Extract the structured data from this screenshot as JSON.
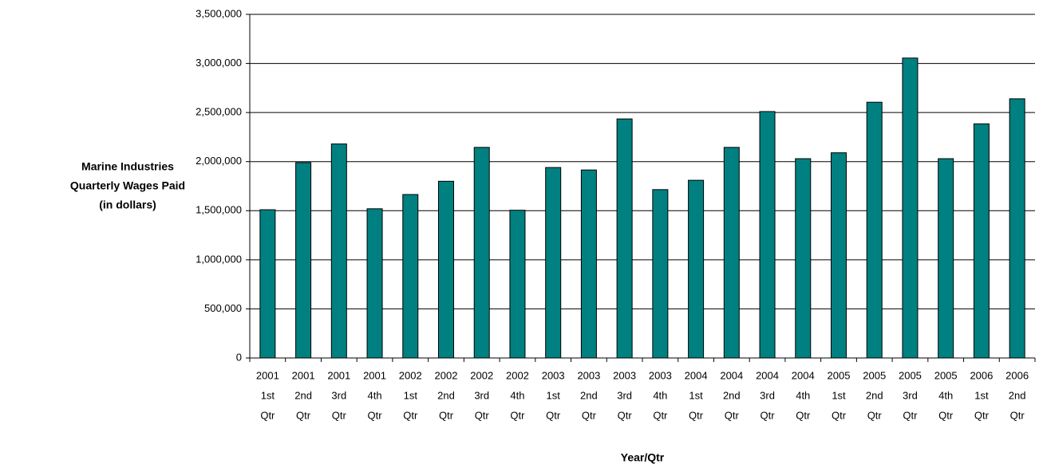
{
  "chart_data": {
    "type": "bar",
    "y_label": [
      "Marine Industries",
      "Quarterly Wages Paid",
      "(in dollars)"
    ],
    "x_label": "Year/Qtr",
    "categories": [
      [
        "2001",
        "1st",
        "Qtr"
      ],
      [
        "2001",
        "2nd",
        "Qtr"
      ],
      [
        "2001",
        "3rd",
        "Qtr"
      ],
      [
        "2001",
        "4th",
        "Qtr"
      ],
      [
        "2002",
        "1st",
        "Qtr"
      ],
      [
        "2002",
        "2nd",
        "Qtr"
      ],
      [
        "2002",
        "3rd",
        "Qtr"
      ],
      [
        "2002",
        "4th",
        "Qtr"
      ],
      [
        "2003",
        "1st",
        "Qtr"
      ],
      [
        "2003",
        "2nd",
        "Qtr"
      ],
      [
        "2003",
        "3rd",
        "Qtr"
      ],
      [
        "2003",
        "4th",
        "Qtr"
      ],
      [
        "2004",
        "1st",
        "Qtr"
      ],
      [
        "2004",
        "2nd",
        "Qtr"
      ],
      [
        "2004",
        "3rd",
        "Qtr"
      ],
      [
        "2004",
        "4th",
        "Qtr"
      ],
      [
        "2005",
        "1st",
        "Qtr"
      ],
      [
        "2005",
        "2nd",
        "Qtr"
      ],
      [
        "2005",
        "3rd",
        "Qtr"
      ],
      [
        "2005",
        "4th",
        "Qtr"
      ],
      [
        "2006",
        "1st",
        "Qtr"
      ],
      [
        "2006",
        "2nd",
        "Qtr"
      ]
    ],
    "values": [
      1510000,
      1990000,
      2180000,
      1520000,
      1665000,
      1800000,
      2145000,
      1505000,
      1940000,
      1915000,
      2435000,
      1715000,
      1810000,
      2145000,
      2510000,
      2030000,
      2090000,
      2605000,
      3055000,
      2030000,
      2385000,
      2640000
    ],
    "color": "#008080",
    "ylim": [
      0,
      3500000
    ],
    "yticks": [
      0,
      {
        "value": 500000,
        "label": "500,000"
      },
      {
        "value": 1000000,
        "label": "1,000,000"
      },
      {
        "value": 1500000,
        "label": "1,500,000"
      },
      {
        "value": 2000000,
        "label": "2,000,000"
      },
      {
        "value": 2500000,
        "label": "2,500,000"
      },
      {
        "value": 3000000,
        "label": "3,000,000"
      },
      {
        "value": 3500000,
        "label": "3,500,000"
      }
    ],
    "grid": true
  }
}
